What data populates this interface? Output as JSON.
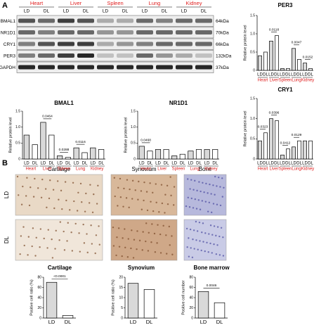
{
  "panel_labels": [
    "A",
    "B"
  ],
  "blot": {
    "tissues": [
      "Heart",
      "Liver",
      "Spleen",
      "Lung",
      "Kidney"
    ],
    "conditions": [
      "LD",
      "DL"
    ],
    "proteins": [
      "BMAL1",
      "NR1D1",
      "CRY1",
      "PER3",
      "GAPDH"
    ],
    "sizes": [
      "64kDa",
      "70kDa",
      "66kDa",
      "132kDa",
      "37kDa"
    ]
  },
  "histology": {
    "columns": [
      "Cartilage",
      "Synovium",
      "Bone"
    ],
    "rows": [
      "LD",
      "DL"
    ]
  },
  "chart_data": [
    {
      "type": "bar",
      "title": "PER3",
      "y_label": "Relative protein level",
      "categories": [
        "LD",
        "DL",
        "LD",
        "DL",
        "LD",
        "DL",
        "LD",
        "DL",
        "LD",
        "DL"
      ],
      "groups": [
        "Heart",
        "Liver",
        "Spleen",
        "Lung",
        "Kidney"
      ],
      "group_color": "#e02020",
      "values": [
        0.4,
        0.5,
        0.8,
        0.95,
        0.05,
        0.05,
        0.6,
        0.3,
        0.2,
        0.05
      ],
      "pvalues": [
        null,
        "0.0118",
        null,
        "0.0047",
        "0.0152"
      ],
      "ylim": [
        0,
        1.5
      ],
      "yticks": [
        0,
        0.5,
        {
          "value": 1,
          "label": "1.0"
        },
        1.5
      ]
    },
    {
      "type": "bar",
      "title": "BMAL1",
      "y_label": "Relative protein level",
      "categories": [
        "LD",
        "DL",
        "LD",
        "DL",
        "LD",
        "DL",
        "LD",
        "DL",
        "LD",
        "DL"
      ],
      "groups": [
        "Heart",
        "Liver",
        "Spleen",
        "Lung",
        "Kidney"
      ],
      "group_color": "#e02020",
      "values": [
        0.75,
        0.45,
        1.15,
        0.75,
        0.1,
        0.05,
        0.35,
        0.2,
        0.35,
        0.3
      ],
      "pvalues": [
        null,
        "0.0464",
        "0.0288",
        "0.0116",
        null
      ],
      "ylim": [
        0,
        1.5
      ],
      "yticks": [
        0,
        0.5,
        {
          "value": 1,
          "label": "1.0"
        },
        1.5
      ]
    },
    {
      "type": "bar",
      "title": "NR1D1",
      "y_label": "Relative protein level",
      "categories": [
        "LD",
        "DL",
        "LD",
        "DL",
        "LD",
        "DL",
        "LD",
        "DL",
        "LD",
        "DL"
      ],
      "groups": [
        "Heart",
        "Liver",
        "Spleen",
        "Lung",
        "Kidney"
      ],
      "group_color": "#e02020",
      "values": [
        0.4,
        0.25,
        0.3,
        0.3,
        0.1,
        0.15,
        0.25,
        0.3,
        0.3,
        0.3
      ],
      "pvalues": [
        "0.0468",
        null,
        null,
        null,
        null
      ],
      "ylim": [
        0,
        1.5
      ],
      "yticks": [
        0,
        0.5,
        {
          "value": 1,
          "label": "1.0"
        },
        1.5
      ]
    },
    {
      "type": "bar",
      "title": "CRY1",
      "y_label": "Relative protein level",
      "categories": [
        "LD",
        "DL",
        "LD",
        "DL",
        "LD",
        "DL",
        "LD",
        "DL",
        "LD",
        "DL"
      ],
      "groups": [
        "Heart",
        "Liver",
        "Spleen",
        "Lung",
        "Kidney"
      ],
      "group_color": "#e02020",
      "values": [
        0.45,
        0.65,
        1.0,
        0.95,
        0.1,
        0.25,
        0.3,
        0.45,
        0.45,
        0.45
      ],
      "pvalues": [
        "0.0323",
        "0.0396",
        "0.0412",
        "0.0129",
        null
      ],
      "ylim": [
        0,
        1.5
      ],
      "yticks": [
        0,
        0.5,
        {
          "value": 1,
          "label": "1.0"
        },
        1.5
      ]
    },
    {
      "type": "bar",
      "title": "Cartilage",
      "y_label": "Positive cell ratio (%)",
      "categories": [
        "LD",
        "DL"
      ],
      "values": [
        70,
        5
      ],
      "pvalues": [
        "<0.0001"
      ],
      "ylim": [
        0,
        80
      ],
      "yticks": [
        0,
        20,
        40,
        60,
        80
      ]
    },
    {
      "type": "bar",
      "title": "Synovium",
      "y_label": "Positive cell ratio (%)",
      "categories": [
        "LD",
        "DL"
      ],
      "values": [
        17,
        14
      ],
      "pvalues": [
        null
      ],
      "ylim": [
        0,
        20
      ],
      "yticks": [
        0,
        5,
        10,
        15,
        20
      ]
    },
    {
      "type": "bar",
      "title": "Bone marrow",
      "y_label": "Positive cell number",
      "categories": [
        "LD",
        "DL"
      ],
      "values": [
        52,
        30
      ],
      "pvalues": [
        "0.0046"
      ],
      "ylim": [
        0,
        80
      ],
      "yticks": [
        0,
        20,
        40,
        60,
        80
      ]
    }
  ]
}
